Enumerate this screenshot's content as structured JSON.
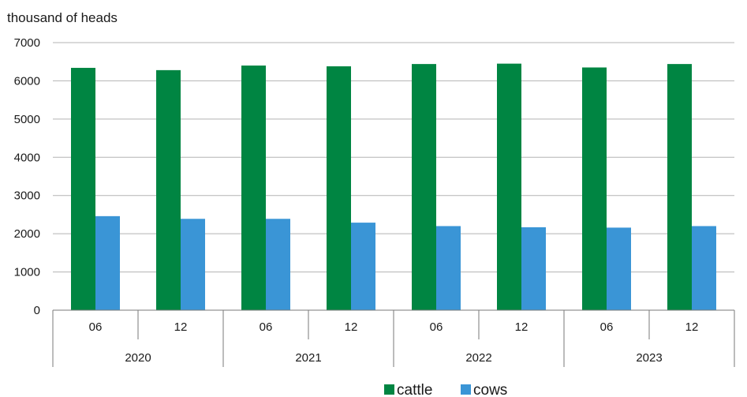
{
  "chart_data": {
    "type": "bar",
    "title": "",
    "ylabel": "thousand of heads",
    "xlabel": "",
    "ylim": [
      0,
      7000
    ],
    "yticks": [
      0,
      1000,
      2000,
      3000,
      4000,
      5000,
      6000,
      7000
    ],
    "grid": true,
    "legend_position": "bottom-right",
    "categories": [
      {
        "month": "06",
        "year": "2020"
      },
      {
        "month": "12",
        "year": "2020"
      },
      {
        "month": "06",
        "year": "2021"
      },
      {
        "month": "12",
        "year": "2021"
      },
      {
        "month": "06",
        "year": "2022"
      },
      {
        "month": "12",
        "year": "2022"
      },
      {
        "month": "06",
        "year": "2023"
      },
      {
        "month": "12",
        "year": "2023"
      }
    ],
    "years": [
      "2020",
      "2021",
      "2022",
      "2023"
    ],
    "series": [
      {
        "name": "cattle",
        "color": "#008542",
        "values": [
          6340,
          6280,
          6400,
          6380,
          6440,
          6450,
          6350,
          6440
        ]
      },
      {
        "name": "cows",
        "color": "#3a95d6",
        "values": [
          2460,
          2390,
          2390,
          2290,
          2200,
          2170,
          2160,
          2200
        ]
      }
    ]
  }
}
